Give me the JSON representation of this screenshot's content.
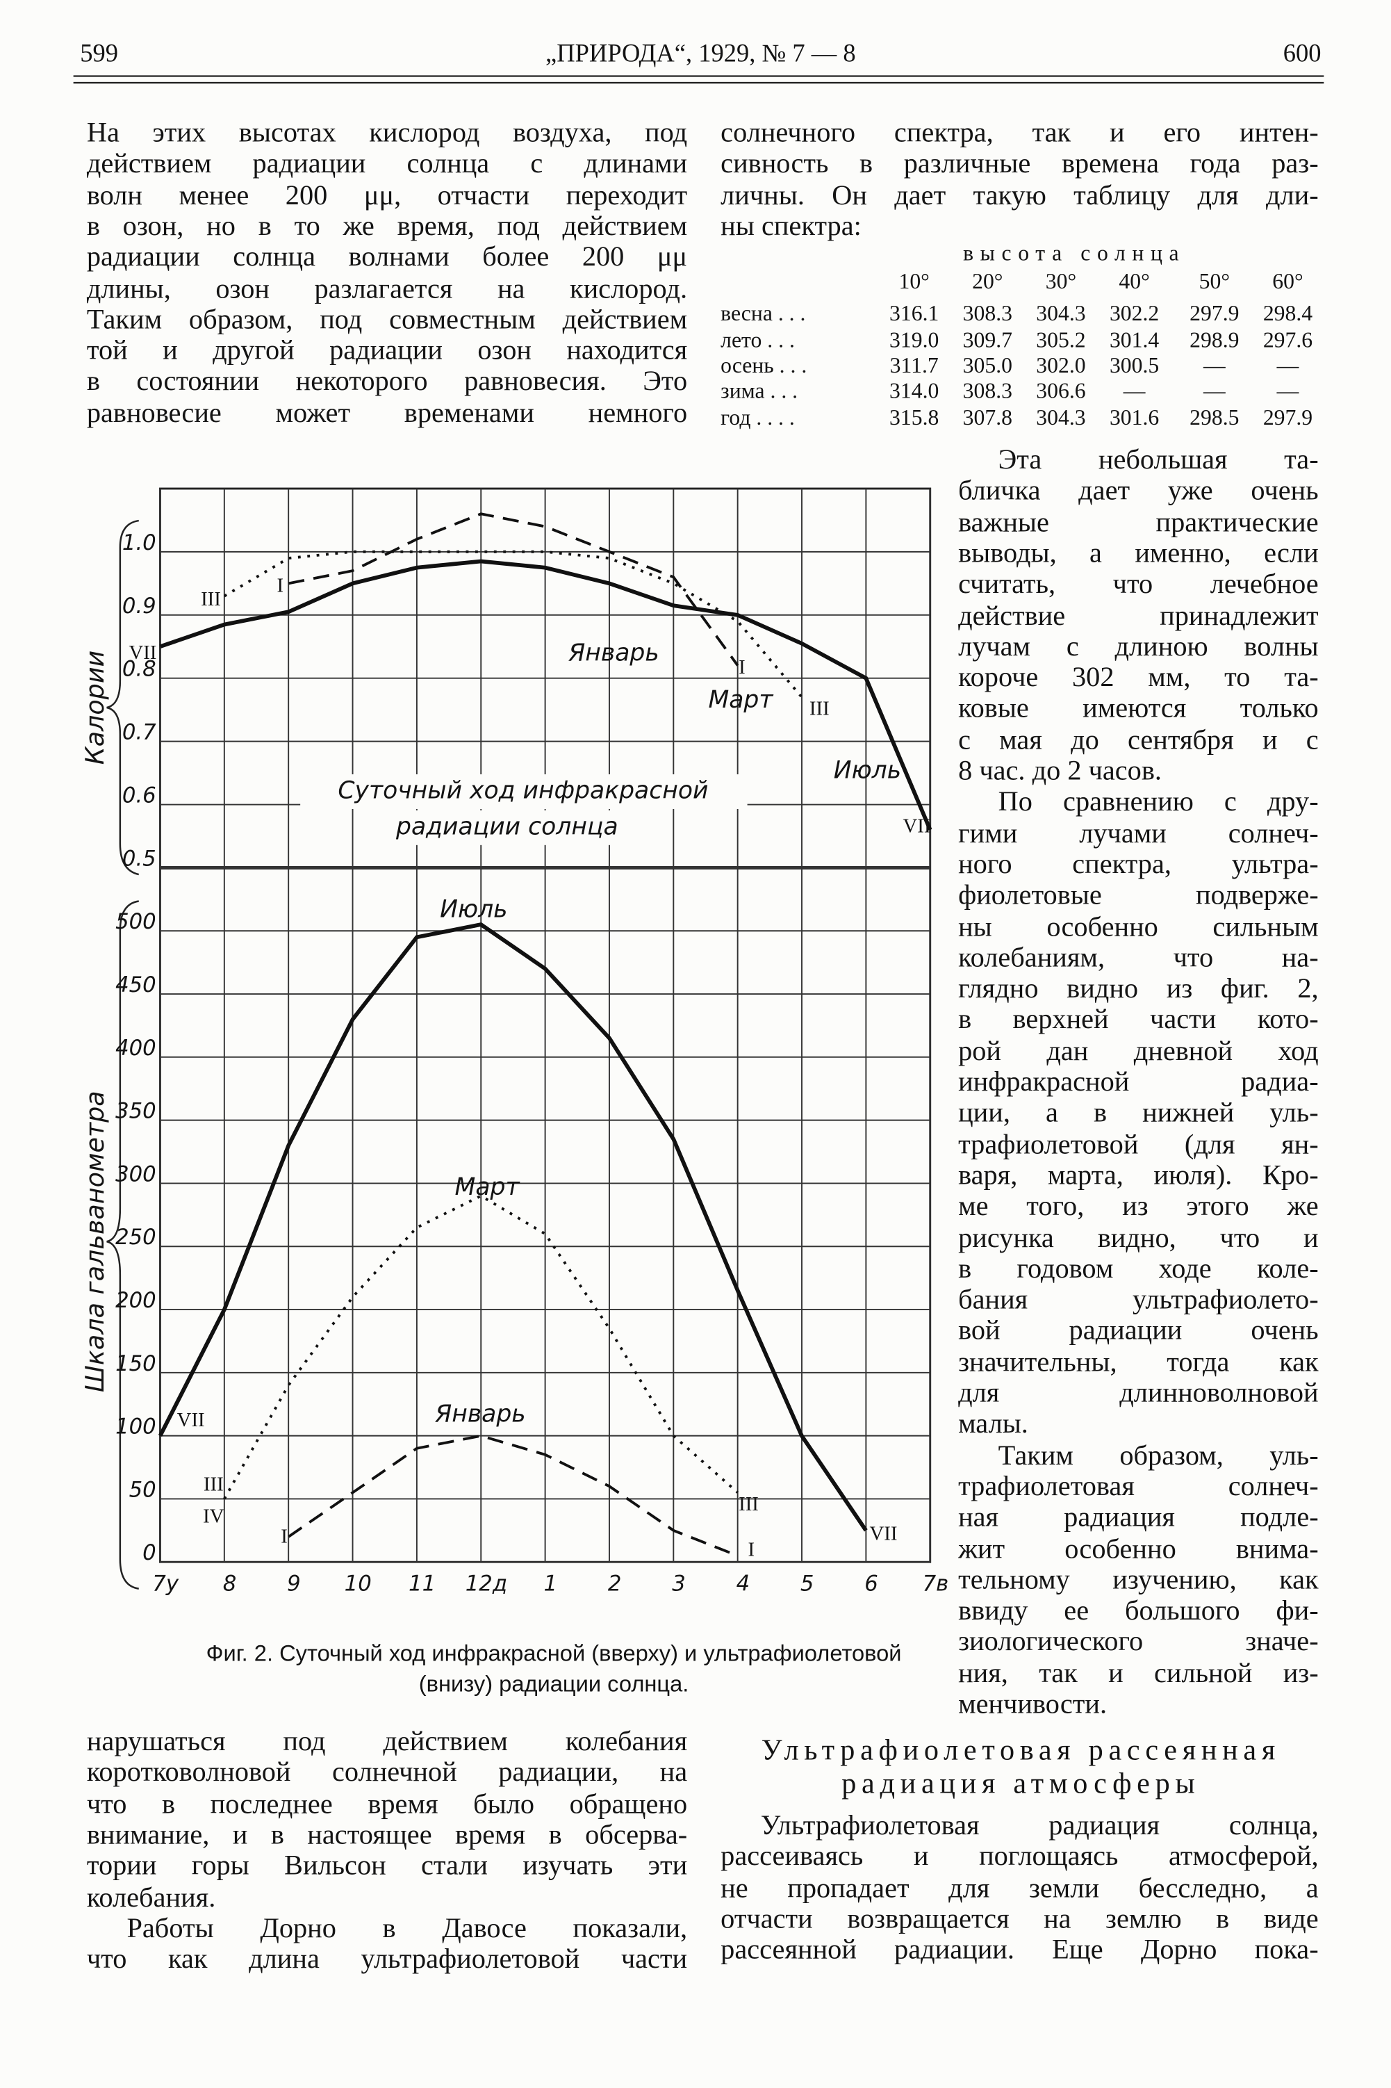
{
  "header": {
    "left_page": "599",
    "title": "„ПРИРОДА“, 1929, № 7 — 8",
    "right_page": "600"
  },
  "text": {
    "left_top": [
      "На этих высотах кислород воздуха, под",
      "действием радиации солнца с длинами",
      "волн менее 200 μμ, отчасти переходит",
      "в озон, но в то же время, под действием",
      "радиации солнца волнами более 200 μμ",
      "длины, озон разлагается на кислород.",
      "Таким образом, под совместным действием",
      "той и другой радиации озон находится",
      "в состоянии некоторого равновесия. Это",
      "равновесие может временами немного"
    ],
    "right_top": [
      "солнечного спектра, так и его интен-",
      "сивность в различные времена года раз-",
      "личны. Он дает такую таблицу для дли-",
      "ны спектра:"
    ],
    "right_side": [
      [
        "Эта небольшая та-",
        "бличка дает уже очень",
        "важные практические",
        "выводы, а именно, если",
        "считать, что лечебное",
        "действие принадлежит",
        "лучам с длиною волны",
        "короче 302 мм, то та-",
        "ковые имеются только",
        "с мая до сентября и с",
        "8 час. до 2 часов."
      ],
      [
        "По сравнению с дру-",
        "гими лучами солнеч-",
        "ного спектра, ультра-",
        "фиолетовые подверже-",
        "ны особенно сильным",
        "колебаниям, что на-",
        "глядно видно из фиг. 2,",
        "в верхней части кото-",
        "рой дан дневной ход",
        "инфракрасной радиа-",
        "ции, а в нижней уль-",
        "трафиолетовой (для ян-",
        "варя, марта, июля). Кро-",
        "ме того, из этого же",
        "рисунка видно, что и",
        "в годовом ходе коле-",
        "бания ультрафиолето-",
        "вой радиации очень",
        "значительны, тогда как",
        "для длинноволновой",
        "малы."
      ],
      [
        "Таким образом, уль-",
        "трафиолетовая солнеч-",
        "ная радиация подле-",
        "жит особенно внима-",
        "тельному изучению, как",
        "ввиду ее большого фи-",
        "зиологического значе-",
        "ния, так и сильной из-",
        "менчивости."
      ]
    ],
    "left_bottom": [
      [
        "нарушаться под действием колебания",
        "коротковолновой солнечной радиации, на",
        "что в последнее время было обращено",
        "внимание, и в настоящее время в обсерва-",
        "тории горы Вильсон стали изучать эти",
        "колебания."
      ],
      [
        "Работы Дорно в Давосе показали,",
        "что как длина ультрафиолетовой части"
      ]
    ],
    "section_heading": [
      "Ультрафиолетовая рассеянная",
      "радиация атмосферы"
    ],
    "section_body": [
      "Ультрафиолетовая радиация солнца,",
      "рассеиваясь и поглощаясь атмосферой,",
      "не пропадает для земли бесследно, а",
      "отчасти возвращается на землю в виде",
      "рассеянной радиации. Еще Дорно пока-"
    ]
  },
  "table": {
    "caption": "высота солнца",
    "columns": [
      "10°",
      "20°",
      "30°",
      "40°",
      "50°",
      "60°"
    ],
    "rows": [
      {
        "label": "весна . . .",
        "cells": [
          "316.1",
          "308.3",
          "304.3",
          "302.2",
          "297.9",
          "298.4"
        ]
      },
      {
        "label": "лето . . .",
        "cells": [
          "319.0",
          "309.7",
          "305.2",
          "301.4",
          "298.9",
          "297.6"
        ]
      },
      {
        "label": "осень . . .",
        "cells": [
          "311.7",
          "305.0",
          "302.0",
          "300.5",
          "—",
          "—"
        ]
      },
      {
        "label": "зима . . .",
        "cells": [
          "314.0",
          "308.3",
          "306.6",
          "—",
          "—",
          "—"
        ]
      },
      {
        "label": "год . . . .",
        "cells": [
          "315.8",
          "307.8",
          "304.3",
          "301.6",
          "298.5",
          "297.9"
        ]
      }
    ]
  },
  "figure": {
    "caption": [
      "Фиг. 2. Суточный ход инфракрасной (вверху) и ультрафиолетовой",
      "(внизу) радиации солнца."
    ],
    "charts": [
      {
        "type": "line",
        "y_label": "Калории",
        "annotation": [
          "Суточный ход инфракрасной",
          "радиации солнца"
        ],
        "x": [
          7,
          8,
          9,
          10,
          11,
          12,
          13,
          14,
          15,
          16,
          17,
          18,
          19
        ],
        "xlim": [
          7,
          19
        ],
        "ylim": [
          0.5,
          1.1
        ],
        "yticks": [
          0.5,
          0.6,
          0.7,
          0.8,
          0.9,
          {
            "value": 1,
            "label": "1.0"
          }
        ],
        "series": [
          {
            "name": "Июль",
            "color": "#111111",
            "dash": "solid",
            "start_label": "VII",
            "end_label": "VII",
            "values": [
              0.85,
              0.885,
              0.905,
              0.95,
              0.975,
              0.985,
              0.975,
              0.95,
              0.915,
              0.9,
              0.855,
              0.8,
              0.56
            ]
          },
          {
            "name": "Январь",
            "color": "#111111",
            "dash": "dashed",
            "start_label": "I",
            "end_label": "I",
            "values": [
              null,
              null,
              0.95,
              0.97,
              1.02,
              1.06,
              1.04,
              1.0,
              0.96,
              0.82,
              null,
              null,
              null
            ]
          },
          {
            "name": "Март",
            "color": "#111111",
            "dash": "dotted",
            "start_label": "III",
            "end_label": "III",
            "values": [
              null,
              0.93,
              0.99,
              1.0,
              1.0,
              1.0,
              1.0,
              0.99,
              0.95,
              0.89,
              0.77,
              null,
              null
            ]
          }
        ]
      },
      {
        "type": "line",
        "y_label": "Шкала гальванометра",
        "extra_labels": [
          "IV"
        ],
        "x": [
          7,
          8,
          9,
          10,
          11,
          12,
          13,
          14,
          15,
          16,
          17,
          18,
          19
        ],
        "xlim": [
          7,
          19
        ],
        "ylim": [
          0,
          550
        ],
        "xticks": [
          {
            "value": 7,
            "label": "7у"
          },
          8,
          9,
          10,
          11,
          {
            "value": 12,
            "label": "12д"
          },
          {
            "value": 13,
            "label": "1"
          },
          {
            "value": 14,
            "label": "2"
          },
          {
            "value": 15,
            "label": "3"
          },
          {
            "value": 16,
            "label": "4"
          },
          {
            "value": 17,
            "label": "5"
          },
          {
            "value": 18,
            "label": "6"
          },
          {
            "value": 19,
            "label": "7в"
          }
        ],
        "yticks": [
          0,
          50,
          100,
          150,
          200,
          250,
          300,
          350,
          400,
          450,
          500
        ],
        "series": [
          {
            "name": "Июль",
            "color": "#111111",
            "dash": "solid",
            "start_label": "VII",
            "end_label": "VII",
            "values": [
              100,
              200,
              330,
              430,
              495,
              505,
              470,
              415,
              335,
              215,
              100,
              25,
              null
            ]
          },
          {
            "name": "Март",
            "color": "#111111",
            "dash": "dotted",
            "start_label": "III",
            "end_label": "III",
            "values": [
              null,
              50,
              140,
              210,
              265,
              290,
              260,
              185,
              100,
              55,
              null,
              null,
              null
            ]
          },
          {
            "name": "Январь",
            "color": "#111111",
            "dash": "dashed",
            "start_label": "I",
            "end_label": "I",
            "values": [
              null,
              null,
              20,
              55,
              90,
              100,
              85,
              60,
              25,
              5,
              null,
              null,
              null
            ]
          }
        ]
      }
    ]
  }
}
